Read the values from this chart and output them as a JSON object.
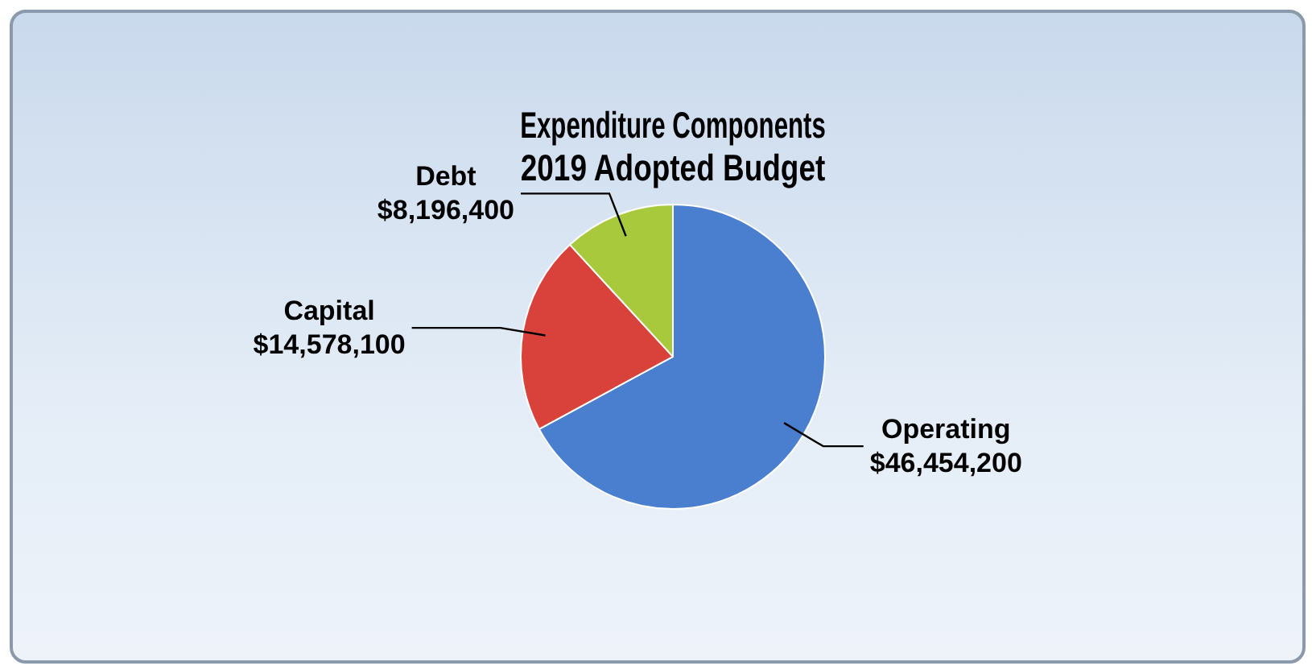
{
  "chart_data": {
    "type": "pie",
    "title": "Expenditure Components\n2019 Adopted Budget",
    "categories": [
      "Operating",
      "Capital",
      "Debt"
    ],
    "values": [
      46454200,
      14578100,
      8196400
    ],
    "colors": [
      "#4a7fd0",
      "#d8423a",
      "#a9c93c"
    ],
    "value_labels": [
      "$46,454,200",
      "$14,578,100",
      "$8,196,400"
    ],
    "legend": false
  }
}
